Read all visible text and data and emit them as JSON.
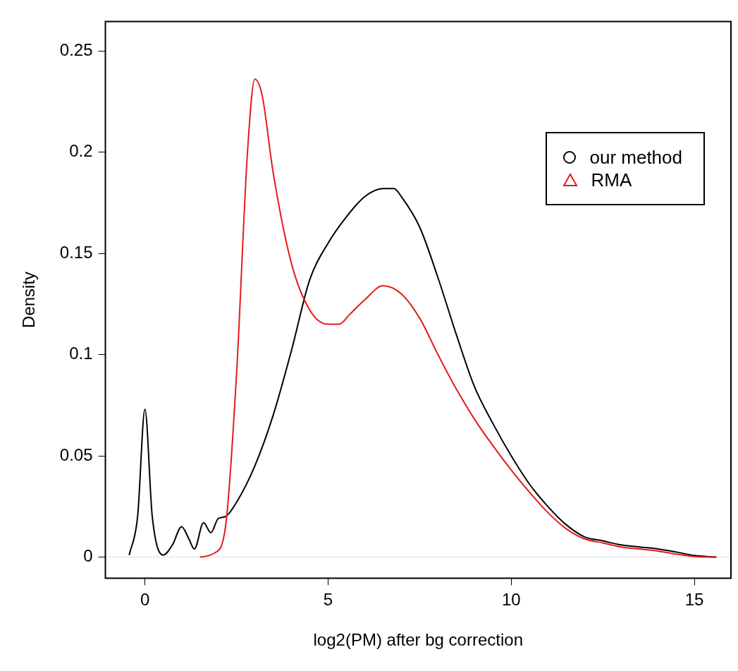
{
  "chart_data": {
    "type": "line",
    "xlabel": "log2(PM) after bg correction",
    "ylabel": "Density",
    "xlim": [
      -1.08,
      16
    ],
    "ylim": [
      -0.0104,
      0.2645
    ],
    "xticks": [
      0,
      5,
      10,
      15
    ],
    "yticks": [
      0,
      0.05,
      0.1,
      0.15,
      0.2,
      0.25
    ],
    "grid": false,
    "legend": "top right",
    "line_style": "solid",
    "ref_lines": [
      {
        "axis": "y",
        "value": 0,
        "color": "#e6e6e6"
      }
    ],
    "series": [
      {
        "name": "our method",
        "color": "#000000",
        "x": [
          -0.43,
          -0.2,
          0,
          0.2,
          0.5,
          0.75,
          1,
          1.2,
          1.35,
          1.6,
          1.8,
          2,
          2.2,
          2.5,
          3,
          3.5,
          4,
          4.5,
          5,
          5.5,
          6,
          6.5,
          6.8,
          7,
          7.5,
          8,
          8.5,
          9,
          9.5,
          10,
          10.5,
          11,
          11.5,
          12,
          12.5,
          13,
          13.5,
          14,
          14.5,
          15,
          15.6
        ],
        "values": [
          0.001,
          0.02,
          0.073,
          0.02,
          0.001,
          0.006,
          0.015,
          0.009,
          0.004,
          0.017,
          0.012,
          0.019,
          0.02,
          0.027,
          0.045,
          0.07,
          0.102,
          0.137,
          0.155,
          0.168,
          0.178,
          0.182,
          0.182,
          0.178,
          0.163,
          0.138,
          0.11,
          0.084,
          0.066,
          0.05,
          0.036,
          0.025,
          0.016,
          0.01,
          0.008,
          0.006,
          0.005,
          0.004,
          0.0025,
          0.0008,
          0
        ]
      },
      {
        "name": "RMA",
        "color": "#e41a1c",
        "x": [
          1.5,
          1.9,
          2.2,
          2.5,
          2.8,
          3,
          3.2,
          3.5,
          4,
          4.5,
          5,
          5.3,
          5.6,
          6,
          6.5,
          7,
          7.5,
          8,
          8.5,
          9,
          9.5,
          10,
          10.5,
          11,
          11.5,
          12,
          12.5,
          13,
          13.5,
          14,
          14.5,
          15,
          15.6
        ],
        "values": [
          0,
          0.002,
          0.015,
          0.09,
          0.2,
          0.236,
          0.228,
          0.19,
          0.145,
          0.122,
          0.115,
          0.115,
          0.12,
          0.127,
          0.134,
          0.13,
          0.118,
          0.1,
          0.083,
          0.068,
          0.055,
          0.043,
          0.032,
          0.022,
          0.014,
          0.009,
          0.007,
          0.005,
          0.004,
          0.003,
          0.0015,
          0.0003,
          0
        ]
      }
    ]
  }
}
